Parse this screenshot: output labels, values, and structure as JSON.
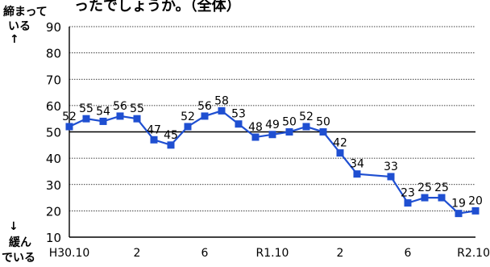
{
  "chart_data": {
    "type": "line",
    "title_fragment": "ったでしょうか。（全体）",
    "y_top_label_lines": [
      "締まって",
      "いる",
      "↑"
    ],
    "y_bottom_label_lines": [
      "↓",
      "緩ん",
      "でいる"
    ],
    "ylim": [
      10,
      90
    ],
    "yticks": [
      10,
      20,
      30,
      40,
      50,
      60,
      70,
      80,
      90
    ],
    "reference_line": 50,
    "x_tick_labels": [
      {
        "index": 0,
        "label": "H30.10"
      },
      {
        "index": 4,
        "label": "2"
      },
      {
        "index": 8,
        "label": "6"
      },
      {
        "index": 12,
        "label": "R1.10"
      },
      {
        "index": 16,
        "label": "2"
      },
      {
        "index": 20,
        "label": "6"
      },
      {
        "index": 24,
        "label": "R2.10"
      }
    ],
    "series": [
      {
        "color": "#1f4fd1",
        "marker": "square",
        "values": [
          52,
          55,
          54,
          56,
          55,
          47,
          45,
          52,
          56,
          58,
          53,
          48,
          49,
          50,
          52,
          50,
          42,
          34,
          null,
          33,
          23,
          25,
          25,
          19,
          20
        ]
      }
    ],
    "grid": "horizontal-dotted"
  }
}
